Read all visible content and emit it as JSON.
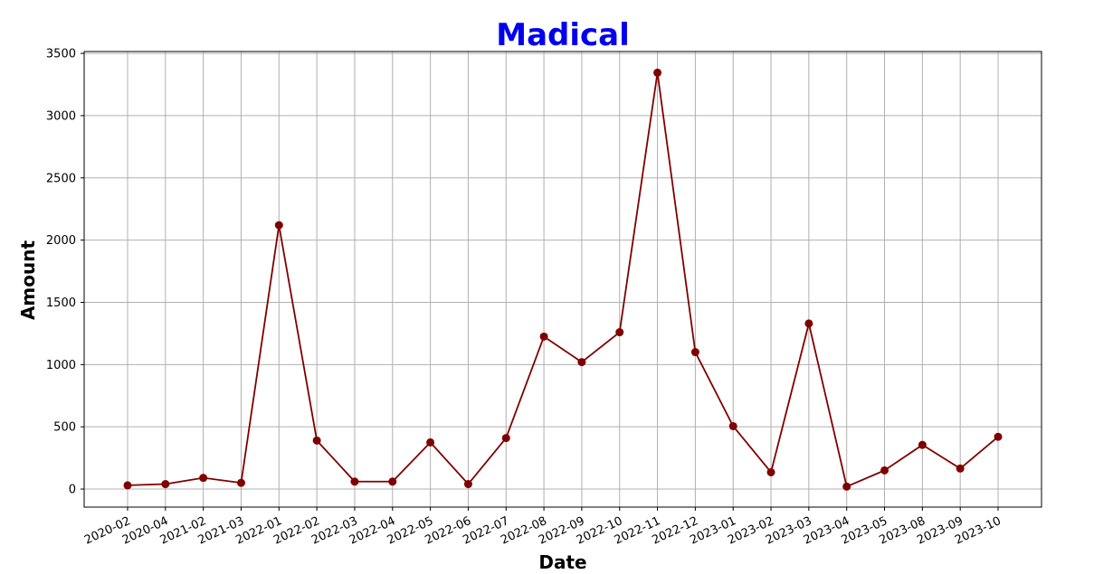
{
  "chart_data": {
    "type": "line",
    "title": "Madical",
    "xlabel": "Date",
    "ylabel": "Amount",
    "categories": [
      "2020-02",
      "2020-04",
      "2021-02",
      "2021-03",
      "2022-01",
      "2022-02",
      "2022-03",
      "2022-04",
      "2022-05",
      "2022-06",
      "2022-07",
      "2022-08",
      "2022-09",
      "2022-10",
      "2022-11",
      "2022-12",
      "2023-01",
      "2023-02",
      "2023-03",
      "2023-04",
      "2023-05",
      "2023-08",
      "2023-09",
      "2023-10"
    ],
    "series": [
      {
        "values": [
          30,
          40,
          90,
          50,
          2120,
          390,
          60,
          60,
          375,
          40,
          410,
          1225,
          1020,
          1260,
          3345,
          1100,
          505,
          135,
          1330,
          20,
          150,
          355,
          165,
          420
        ],
        "color": "#7f0000"
      }
    ],
    "ylim": [
      -145,
      3515
    ],
    "yticks": [
      0,
      500,
      1000,
      1500,
      2000,
      2500,
      3000,
      3500
    ],
    "grid": true,
    "legend": "none",
    "title_color": "#0000ee",
    "marker": "circle",
    "xtick_rotation_deg": 25
  }
}
